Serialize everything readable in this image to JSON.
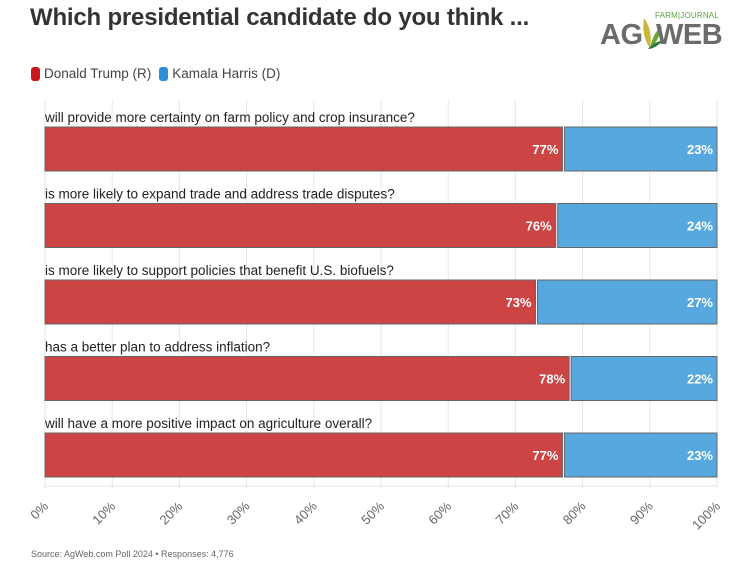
{
  "header": {
    "title": "Which presidential candidate do you think ...",
    "logo": {
      "brand_left": "AG",
      "brand_right": "WEB",
      "tagline": "FARM|JOURNAL",
      "icon": "leaf-icon"
    }
  },
  "legend": [
    {
      "label": "Donald Trump (R)",
      "color": "#c8191f"
    },
    {
      "label": "Kamala Harris (D)",
      "color": "#2b90d9"
    }
  ],
  "footer": {
    "source": "Source: AgWeb.com Poll 2024 • Responses: 4,776"
  },
  "chart_data": {
    "type": "bar",
    "orientation": "horizontal",
    "stacked": true,
    "title": "Which presidential candidate do you think ...",
    "xlabel": "",
    "ylabel": "",
    "xlim": [
      0,
      100
    ],
    "grid": true,
    "legend_position": "top-left",
    "categories": [
      "will provide more certainty on farm policy and crop insurance?",
      "is more likely to expand trade and address trade disputes?",
      "is more likely to support policies that benefit U.S. biofuels?",
      "has a better plan to address inflation?",
      "will have a more positive impact on agriculture overall?"
    ],
    "series": [
      {
        "name": "Donald Trump (R)",
        "color": "#cc4444",
        "values": [
          77,
          76,
          73,
          78,
          77
        ]
      },
      {
        "name": "Kamala Harris (D)",
        "color": "#56a8df",
        "values": [
          23,
          24,
          27,
          22,
          23
        ]
      }
    ],
    "value_labels": [
      [
        "77%",
        "23%"
      ],
      [
        "76%",
        "24%"
      ],
      [
        "73%",
        "27%"
      ],
      [
        "78%",
        "22%"
      ],
      [
        "77%",
        "23%"
      ]
    ],
    "x_ticks": [
      "0%",
      "10%",
      "20%",
      "30%",
      "40%",
      "50%",
      "60%",
      "70%",
      "80%",
      "90%",
      "100%"
    ]
  }
}
